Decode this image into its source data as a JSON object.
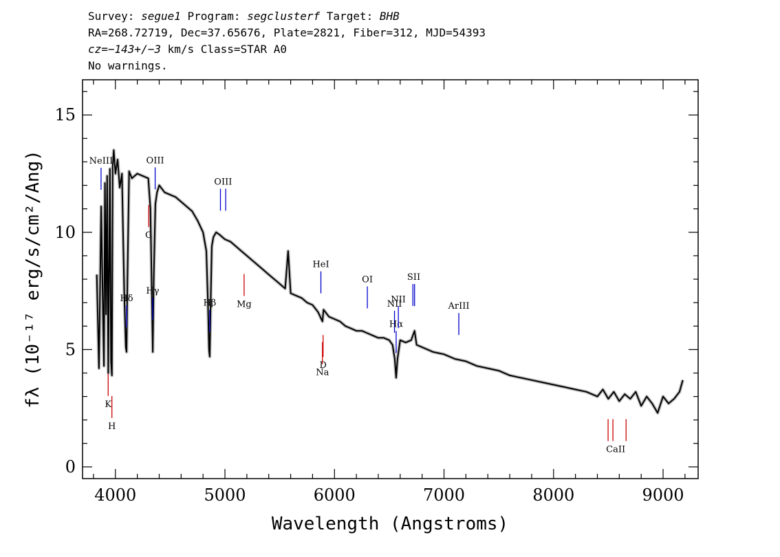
{
  "header": {
    "line1": {
      "survey_label": "Survey: ",
      "survey": "segue1",
      "program_label": " Program: ",
      "program": "segclusterf",
      "target_label": " Target: ",
      "target": "BHB"
    },
    "line2": "RA=268.72719, Dec=37.65676, Plate=2821, Fiber=312, MJD=54393",
    "line3": {
      "cz": "cz=−143+/−3",
      "rest": " km/s Class=STAR A0"
    },
    "line4": "No warnings."
  },
  "chart_data": {
    "type": "line",
    "xlabel": "Wavelength (Angstroms)",
    "ylabel": "fλ (10⁻¹⁷ erg/s/cm²/Ang)",
    "xlim": [
      3700,
      9320
    ],
    "ylim": [
      -0.5,
      16.5
    ],
    "x_ticks": [
      4000,
      5000,
      6000,
      7000,
      8000,
      9000
    ],
    "y_ticks": [
      0,
      5,
      10,
      15
    ],
    "x_minor_step": 200,
    "y_minor_step": 1,
    "grid": false,
    "colors": {
      "flux": "#000000",
      "error": "#b4b4b4",
      "emission": "#0000cc",
      "absorption": "#cc0000"
    },
    "series": [
      {
        "name": "",
        "x": [
          3830,
          3850,
          3870,
          3880,
          3895,
          3905,
          3915,
          3925,
          3935,
          3950,
          3960,
          3968,
          3975,
          3985,
          4000,
          4020,
          4040,
          4060,
          4080,
          4095,
          4102,
          4110,
          4125,
          4150,
          4200,
          4250,
          4300,
          4320,
          4335,
          4341,
          4350,
          4365,
          4380,
          4400,
          4450,
          4500,
          4550,
          4600,
          4650,
          4700,
          4750,
          4800,
          4830,
          4845,
          4855,
          4861,
          4868,
          4880,
          4895,
          4920,
          4950,
          5000,
          5050,
          5100,
          5150,
          5200,
          5250,
          5300,
          5350,
          5400,
          5450,
          5500,
          5550,
          5577,
          5600,
          5650,
          5700,
          5750,
          5800,
          5850,
          5890,
          5900,
          5950,
          6000,
          6050,
          6100,
          6150,
          6200,
          6250,
          6300,
          6350,
          6400,
          6450,
          6500,
          6530,
          6550,
          6563,
          6575,
          6600,
          6650,
          6700,
          6731,
          6750,
          6800,
          6900,
          7000,
          7100,
          7200,
          7300,
          7400,
          7500,
          7600,
          7700,
          7800,
          7900,
          8000,
          8100,
          8200,
          8300,
          8400,
          8450,
          8500,
          8550,
          8600,
          8650,
          8700,
          8750,
          8800,
          8850,
          8900,
          8950,
          9000,
          9050,
          9100,
          9150,
          9180
        ],
        "y": [
          8.2,
          4.2,
          11.1,
          8.3,
          4.3,
          12.1,
          6.5,
          12.4,
          4.0,
          12.7,
          4.5,
          3.9,
          12.8,
          13.5,
          12.5,
          13.1,
          11.9,
          12.5,
          7.6,
          5.1,
          4.9,
          8.0,
          12.6,
          12.3,
          12.5,
          12.4,
          12.3,
          11.0,
          6.8,
          4.9,
          8.0,
          11.2,
          11.7,
          12.0,
          11.7,
          11.6,
          11.5,
          11.3,
          11.1,
          10.9,
          10.5,
          10.0,
          9.2,
          7.0,
          5.0,
          4.7,
          6.5,
          9.4,
          9.8,
          10.0,
          9.9,
          9.7,
          9.6,
          9.4,
          9.2,
          9.0,
          8.8,
          8.6,
          8.4,
          8.2,
          8.0,
          7.8,
          7.6,
          9.2,
          7.4,
          7.3,
          7.2,
          7.0,
          6.9,
          6.6,
          6.2,
          6.7,
          6.4,
          6.3,
          6.2,
          6.0,
          5.9,
          5.8,
          5.8,
          5.7,
          5.6,
          5.5,
          5.5,
          5.4,
          5.2,
          4.6,
          3.8,
          4.6,
          5.4,
          5.3,
          5.4,
          5.8,
          5.2,
          5.1,
          4.9,
          4.8,
          4.6,
          4.5,
          4.3,
          4.2,
          4.1,
          3.9,
          3.8,
          3.7,
          3.6,
          3.5,
          3.4,
          3.3,
          3.2,
          3.0,
          3.3,
          2.9,
          3.2,
          2.8,
          3.1,
          2.9,
          3.2,
          2.6,
          3.0,
          2.7,
          2.3,
          3.0,
          2.7,
          2.9,
          3.2,
          3.7
        ]
      }
    ],
    "emission_lines": [
      {
        "label": "NeIII",
        "wl": 3869
      },
      {
        "label": "Hδ",
        "wl": 4102
      },
      {
        "label": "Hγ",
        "wl": 4340
      },
      {
        "label": "OIII",
        "wl": 4363
      },
      {
        "label": "Hβ",
        "wl": 4861
      },
      {
        "label": "OIII",
        "wl": [
          4959,
          5007
        ]
      },
      {
        "label": "HeI",
        "wl": 5876
      },
      {
        "label": "OI",
        "wl": 6300
      },
      {
        "label": "NII",
        "wl": 6548
      },
      {
        "label": "Hα",
        "wl": 6563
      },
      {
        "label": "NII",
        "wl": 6583
      },
      {
        "label": "SII",
        "wl": [
          6716,
          6731
        ]
      },
      {
        "label": "ArIII",
        "wl": 7135
      }
    ],
    "absorption_lines": [
      {
        "label": "K",
        "wl": 3934
      },
      {
        "label": "H",
        "wl": 3968
      },
      {
        "label": "G",
        "wl": 4304
      },
      {
        "label": "Mg",
        "wl": 5175
      },
      {
        "label": "Na",
        "wl": 5890
      },
      {
        "label": "D",
        "wl": 5896
      },
      {
        "label": "CaII",
        "wl": [
          8498,
          8542,
          8662
        ]
      }
    ]
  }
}
